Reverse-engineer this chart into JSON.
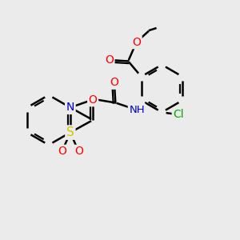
{
  "bg_color": "#ebebeb",
  "atom_colors": {
    "C": "#000000",
    "O": "#ff0000",
    "N": "#0000cc",
    "S": "#cccc00",
    "Cl": "#00aa00",
    "H": "#000000"
  },
  "bond_color": "#000000",
  "bond_width": 1.8,
  "font_size": 10,
  "title": ""
}
